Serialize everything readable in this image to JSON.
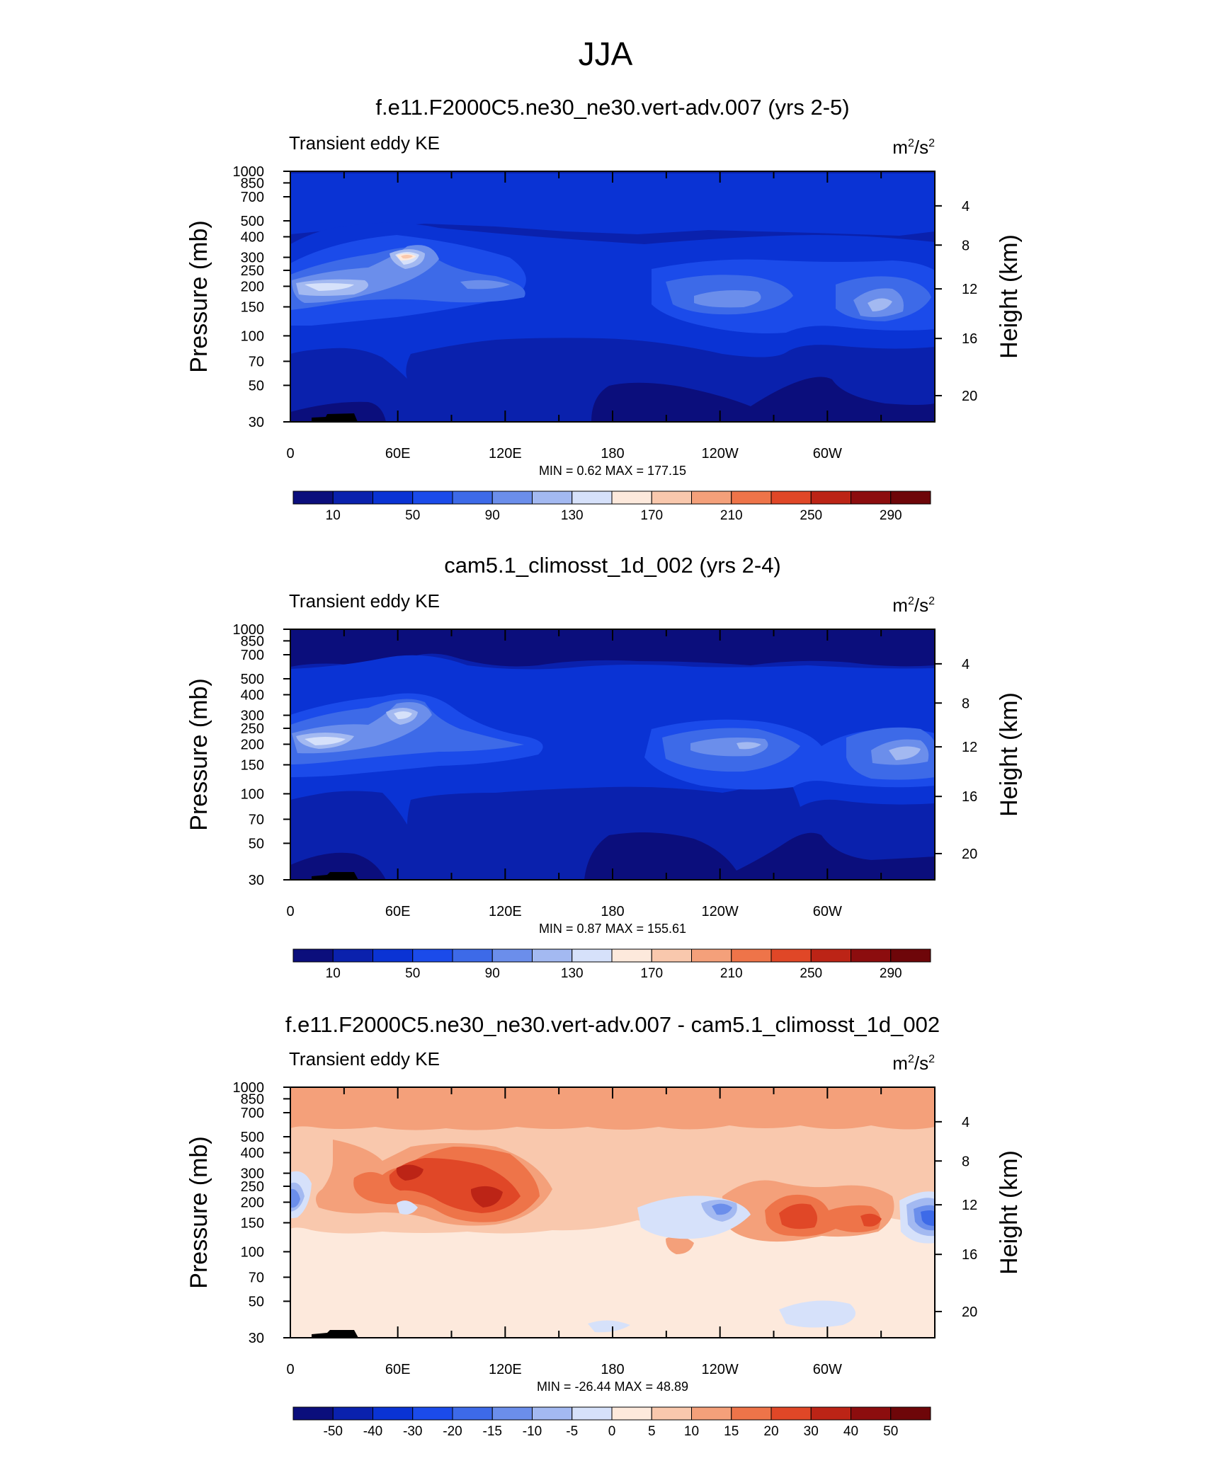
{
  "figure_title": "JJA",
  "panels": [
    {
      "title": "f.e11.F2000C5.ne30_ne30.vert-adv.007 (yrs 2-5)",
      "variable": "Transient eddy KE",
      "units_base": "m",
      "units_sup1": "2",
      "units_mid": "/s",
      "units_sup2": "2",
      "stats": "MIN =   0.62  MAX = 177.15"
    },
    {
      "title": "cam5.1_climosst_1d_002 (yrs 2-4)",
      "variable": "Transient eddy KE",
      "units_base": "m",
      "units_sup1": "2",
      "units_mid": "/s",
      "units_sup2": "2",
      "stats": "MIN =   0.87  MAX = 155.61"
    },
    {
      "title": "f.e11.F2000C5.ne30_ne30.vert-adv.007 - cam5.1_climosst_1d_002",
      "variable": "Transient eddy KE",
      "units_base": "m",
      "units_sup1": "2",
      "units_mid": "/s",
      "units_sup2": "2",
      "stats": "MIN = -26.44  MAX =  48.89"
    }
  ],
  "chart_data": [
    {
      "type": "heatmap",
      "title": "f.e11.F2000C5.ne30_ne30.vert-adv.007 (yrs 2-5)",
      "xlabel": "",
      "ylabel": "Pressure (mb)",
      "ylabel_right": "Height (km)",
      "xlim": [
        0,
        360
      ],
      "ylim_pressure": [
        1000,
        30
      ],
      "x_ticks": [
        "0",
        "60E",
        "120E",
        "180",
        "120W",
        "60W"
      ],
      "y_ticks": [
        "30",
        "50",
        "70",
        "100",
        "150",
        "200",
        "250",
        "300",
        "400",
        "500",
        "700",
        "850",
        "1000"
      ],
      "y_right_ticks": [
        "20",
        "16",
        "12",
        "8",
        "4"
      ],
      "colorbar_labels": [
        "10",
        "50",
        "90",
        "130",
        "170",
        "210",
        "250",
        "290"
      ],
      "levels": [
        10,
        30,
        50,
        70,
        90,
        110,
        130,
        150,
        170,
        190,
        210,
        230,
        250,
        270,
        290
      ],
      "min": 0.62,
      "max": 177.15
    },
    {
      "type": "heatmap",
      "title": "cam5.1_climosst_1d_002 (yrs 2-4)",
      "xlabel": "",
      "ylabel": "Pressure (mb)",
      "ylabel_right": "Height (km)",
      "xlim": [
        0,
        360
      ],
      "ylim_pressure": [
        1000,
        30
      ],
      "x_ticks": [
        "0",
        "60E",
        "120E",
        "180",
        "120W",
        "60W"
      ],
      "y_ticks": [
        "30",
        "50",
        "70",
        "100",
        "150",
        "200",
        "250",
        "300",
        "400",
        "500",
        "700",
        "850",
        "1000"
      ],
      "y_right_ticks": [
        "20",
        "16",
        "12",
        "8",
        "4"
      ],
      "colorbar_labels": [
        "10",
        "50",
        "90",
        "130",
        "170",
        "210",
        "250",
        "290"
      ],
      "levels": [
        10,
        30,
        50,
        70,
        90,
        110,
        130,
        150,
        170,
        190,
        210,
        230,
        250,
        270,
        290
      ],
      "min": 0.87,
      "max": 155.61
    },
    {
      "type": "heatmap",
      "title": "f.e11.F2000C5.ne30_ne30.vert-adv.007 - cam5.1_climosst_1d_002",
      "xlabel": "",
      "ylabel": "Pressure (mb)",
      "ylabel_right": "Height (km)",
      "xlim": [
        0,
        360
      ],
      "ylim_pressure": [
        1000,
        30
      ],
      "x_ticks": [
        "0",
        "60E",
        "120E",
        "180",
        "120W",
        "60W"
      ],
      "y_ticks": [
        "30",
        "50",
        "70",
        "100",
        "150",
        "200",
        "250",
        "300",
        "400",
        "500",
        "700",
        "850",
        "1000"
      ],
      "y_right_ticks": [
        "20",
        "16",
        "12",
        "8",
        "4"
      ],
      "colorbar_labels": [
        "-50",
        "-40",
        "-30",
        "-20",
        "-15",
        "-10",
        "-5",
        "0",
        "5",
        "10",
        "15",
        "20",
        "30",
        "40",
        "50"
      ],
      "levels": [
        -50,
        -40,
        -30,
        -20,
        -15,
        -10,
        -5,
        0,
        5,
        10,
        15,
        20,
        30,
        40,
        50
      ],
      "min": -26.44,
      "max": 48.89
    }
  ],
  "colors": {
    "ramp": [
      "#0b0e7c",
      "#0a21ad",
      "#0a33d4",
      "#1b4bea",
      "#3d6ae8",
      "#6b8eeb",
      "#a3b9f1",
      "#d6e1fa",
      "#fde9dc",
      "#f9c8ad",
      "#f4a07a",
      "#ee7449",
      "#e04727",
      "#bc2416",
      "#8c0d0e",
      "#6e0609"
    ]
  }
}
